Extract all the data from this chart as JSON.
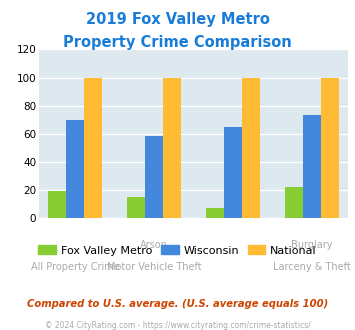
{
  "title_line1": "2019 Fox Valley Metro",
  "title_line2": "Property Crime Comparison",
  "title_color": "#1a7cd9",
  "fox_values": [
    19,
    15,
    7,
    22
  ],
  "wisconsin_values": [
    70,
    58,
    65,
    73
  ],
  "national_values": [
    100,
    100,
    100,
    100
  ],
  "fox_color": "#88cc33",
  "wisconsin_color": "#4488dd",
  "national_color": "#ffbb33",
  "plot_bg_color": "#dde8ef",
  "ylim": [
    0,
    120
  ],
  "yticks": [
    0,
    20,
    40,
    60,
    80,
    100,
    120
  ],
  "legend_labels": [
    "Fox Valley Metro",
    "Wisconsin",
    "National"
  ],
  "upper_xlabels": [
    "",
    "Arson",
    "",
    "Burglary"
  ],
  "lower_xlabels": [
    "All Property Crime",
    "Motor Vehicle Theft",
    "",
    "Larceny & Theft"
  ],
  "xlabel_color": "#aaaaaa",
  "footnote1": "Compared to U.S. average. (U.S. average equals 100)",
  "footnote2": "© 2024 CityRating.com - https://www.cityrating.com/crime-statistics/",
  "footnote1_color": "#cc4400",
  "footnote2_color": "#aaaaaa",
  "bar_width": 0.25,
  "x_positions": [
    0.4,
    1.5,
    2.6,
    3.7
  ]
}
